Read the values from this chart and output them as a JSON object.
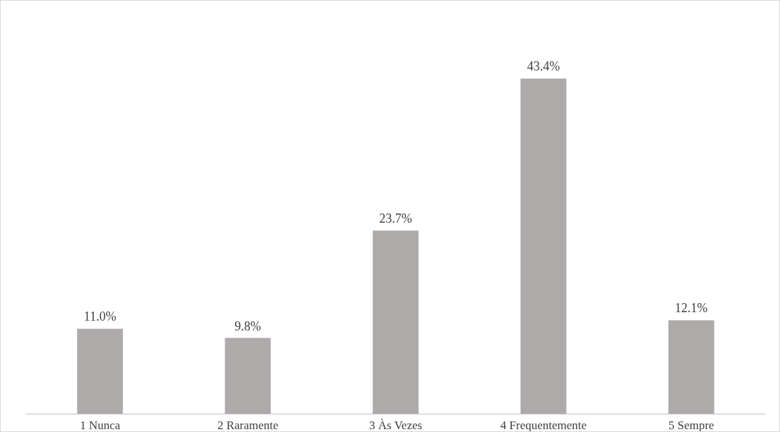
{
  "chart_data": {
    "type": "bar",
    "categories": [
      "1 Nunca",
      "2 Raramente",
      "3 Às Vezes",
      "4 Frequentemente",
      "5 Sempre"
    ],
    "values": [
      11.0,
      9.8,
      23.7,
      43.4,
      12.1
    ],
    "value_labels": [
      "11.0%",
      "9.8%",
      "23.7%",
      "43.4%",
      "12.1%"
    ],
    "color": "#aeaaaa",
    "grid": false
  }
}
